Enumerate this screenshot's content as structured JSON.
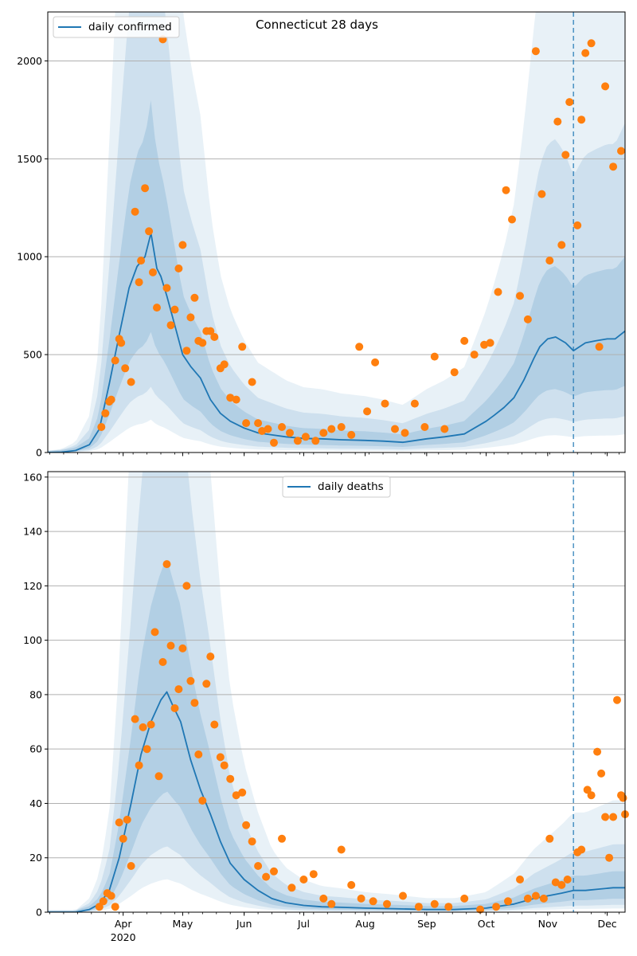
{
  "title": "Connecticut 28 days",
  "x_axis": {
    "type": "date",
    "range": [
      "2020-02-23",
      "2020-12-10"
    ],
    "ticks": [
      {
        "date": "2020-04-01",
        "label": "Apr",
        "sublabel": "2020"
      },
      {
        "date": "2020-05-01",
        "label": "May",
        "sublabel": ""
      },
      {
        "date": "2020-06-01",
        "label": "Jun",
        "sublabel": ""
      },
      {
        "date": "2020-07-01",
        "label": "Jul",
        "sublabel": ""
      },
      {
        "date": "2020-08-01",
        "label": "Aug",
        "sublabel": ""
      },
      {
        "date": "2020-09-01",
        "label": "Sep",
        "sublabel": ""
      },
      {
        "date": "2020-10-01",
        "label": "Oct",
        "sublabel": ""
      },
      {
        "date": "2020-11-01",
        "label": "Nov",
        "sublabel": ""
      },
      {
        "date": "2020-12-01",
        "label": "Dec",
        "sublabel": ""
      }
    ],
    "minor_ticks": "weekly",
    "forecast_start": "2020-11-14"
  },
  "colors": {
    "line": "#1f77b4",
    "points": "#ff7f0e",
    "band": "#1f77b4",
    "grid": "#b0b0b0",
    "vline": "#1f77b4"
  },
  "chart_data": [
    {
      "type": "line",
      "panel": "top",
      "series": [
        {
          "name": "daily confirmed",
          "kind": "line",
          "x": [
            "2020-02-23",
            "2020-03-01",
            "2020-03-08",
            "2020-03-15",
            "2020-03-20",
            "2020-03-25",
            "2020-03-30",
            "2020-04-04",
            "2020-04-08",
            "2020-04-12",
            "2020-04-15",
            "2020-04-18",
            "2020-04-20",
            "2020-04-23",
            "2020-04-27",
            "2020-05-01",
            "2020-05-05",
            "2020-05-10",
            "2020-05-15",
            "2020-05-20",
            "2020-05-25",
            "2020-06-01",
            "2020-06-08",
            "2020-06-15",
            "2020-06-22",
            "2020-07-01",
            "2020-07-10",
            "2020-07-20",
            "2020-08-01",
            "2020-08-10",
            "2020-08-20",
            "2020-09-01",
            "2020-09-10",
            "2020-09-20",
            "2020-10-01",
            "2020-10-05",
            "2020-10-10",
            "2020-10-15",
            "2020-10-20",
            "2020-10-25",
            "2020-10-28",
            "2020-11-01",
            "2020-11-05",
            "2020-11-10",
            "2020-11-14",
            "2020-11-20",
            "2020-11-25",
            "2020-12-01",
            "2020-12-05",
            "2020-12-10"
          ],
          "values": [
            0,
            2,
            10,
            40,
            120,
            350,
            600,
            840,
            950,
            1000,
            1120,
            940,
            900,
            800,
            650,
            500,
            440,
            380,
            270,
            200,
            160,
            125,
            100,
            90,
            80,
            72,
            70,
            65,
            62,
            58,
            52,
            70,
            80,
            95,
            160,
            190,
            230,
            280,
            370,
            480,
            540,
            580,
            590,
            560,
            520,
            560,
            570,
            580,
            580,
            620
          ]
        },
        {
          "name": "",
          "kind": "scatter",
          "x": [
            "2020-03-21",
            "2020-03-23",
            "2020-03-25",
            "2020-03-26",
            "2020-03-28",
            "2020-03-30",
            "2020-03-31",
            "2020-04-02",
            "2020-04-05",
            "2020-04-07",
            "2020-04-09",
            "2020-04-10",
            "2020-04-12",
            "2020-04-14",
            "2020-04-16",
            "2020-04-18",
            "2020-04-21",
            "2020-04-23",
            "2020-04-25",
            "2020-04-27",
            "2020-04-29",
            "2020-05-01",
            "2020-05-03",
            "2020-05-05",
            "2020-05-07",
            "2020-05-09",
            "2020-05-11",
            "2020-05-13",
            "2020-05-15",
            "2020-05-17",
            "2020-05-20",
            "2020-05-22",
            "2020-05-25",
            "2020-05-28",
            "2020-05-31",
            "2020-06-02",
            "2020-06-05",
            "2020-06-08",
            "2020-06-10",
            "2020-06-13",
            "2020-06-16",
            "2020-06-20",
            "2020-06-24",
            "2020-06-28",
            "2020-07-02",
            "2020-07-07",
            "2020-07-11",
            "2020-07-15",
            "2020-07-20",
            "2020-07-25",
            "2020-07-29",
            "2020-08-02",
            "2020-08-06",
            "2020-08-11",
            "2020-08-16",
            "2020-08-21",
            "2020-08-26",
            "2020-08-31",
            "2020-09-05",
            "2020-09-10",
            "2020-09-15",
            "2020-09-20",
            "2020-09-25",
            "2020-09-30",
            "2020-10-03",
            "2020-10-07",
            "2020-10-11",
            "2020-10-14",
            "2020-10-18",
            "2020-10-22",
            "2020-10-26",
            "2020-10-29",
            "2020-11-02",
            "2020-11-06",
            "2020-11-08",
            "2020-11-10",
            "2020-11-12",
            "2020-11-16",
            "2020-11-18",
            "2020-11-20",
            "2020-11-23",
            "2020-11-27",
            "2020-11-30",
            "2020-12-04",
            "2020-12-08"
          ],
          "values": [
            130,
            200,
            260,
            270,
            470,
            580,
            560,
            430,
            360,
            1230,
            870,
            980,
            1350,
            1130,
            920,
            740,
            2110,
            840,
            650,
            730,
            940,
            1060,
            520,
            690,
            790,
            570,
            560,
            620,
            620,
            590,
            430,
            450,
            280,
            270,
            540,
            150,
            360,
            150,
            110,
            120,
            50,
            130,
            100,
            60,
            80,
            60,
            100,
            120,
            130,
            90,
            540,
            210,
            460,
            250,
            120,
            100,
            250,
            130,
            490,
            120,
            410,
            570,
            500,
            550,
            560,
            820,
            1340,
            1190,
            800,
            680,
            2050,
            1320,
            980,
            1690,
            1060,
            1520,
            1790,
            1160,
            1700,
            2040,
            2090,
            540,
            1870,
            1460,
            1540
          ]
        }
      ],
      "ylim": [
        0,
        2250
      ],
      "yticks": [
        0,
        500,
        1000,
        1500,
        2000
      ],
      "grid": true,
      "legend": "top-left"
    },
    {
      "type": "line",
      "panel": "bottom",
      "series": [
        {
          "name": "daily deaths",
          "kind": "line",
          "x": [
            "2020-02-23",
            "2020-03-08",
            "2020-03-15",
            "2020-03-20",
            "2020-03-25",
            "2020-03-30",
            "2020-04-05",
            "2020-04-10",
            "2020-04-15",
            "2020-04-20",
            "2020-04-23",
            "2020-04-26",
            "2020-04-30",
            "2020-05-05",
            "2020-05-10",
            "2020-05-15",
            "2020-05-20",
            "2020-05-25",
            "2020-06-01",
            "2020-06-08",
            "2020-06-15",
            "2020-06-22",
            "2020-07-01",
            "2020-07-10",
            "2020-07-20",
            "2020-08-01",
            "2020-08-15",
            "2020-09-01",
            "2020-09-15",
            "2020-10-01",
            "2020-10-15",
            "2020-10-25",
            "2020-11-01",
            "2020-11-08",
            "2020-11-14",
            "2020-11-20",
            "2020-11-27",
            "2020-12-04",
            "2020-12-10"
          ],
          "values": [
            0,
            0,
            1,
            3,
            8,
            20,
            40,
            58,
            70,
            78,
            81,
            76,
            70,
            56,
            45,
            36,
            26,
            18,
            12,
            8,
            5,
            3.5,
            2.5,
            2,
            1.8,
            1.5,
            1.3,
            1,
            1,
            1.5,
            3,
            5,
            6,
            7,
            8,
            8,
            8.5,
            9,
            9
          ]
        },
        {
          "name": "",
          "kind": "scatter",
          "x": [
            "2020-03-20",
            "2020-03-22",
            "2020-03-24",
            "2020-03-26",
            "2020-03-28",
            "2020-03-30",
            "2020-04-01",
            "2020-04-03",
            "2020-04-05",
            "2020-04-07",
            "2020-04-09",
            "2020-04-11",
            "2020-04-13",
            "2020-04-15",
            "2020-04-17",
            "2020-04-19",
            "2020-04-21",
            "2020-04-23",
            "2020-04-25",
            "2020-04-27",
            "2020-04-29",
            "2020-05-01",
            "2020-05-03",
            "2020-05-05",
            "2020-05-07",
            "2020-05-09",
            "2020-05-11",
            "2020-05-13",
            "2020-05-15",
            "2020-05-17",
            "2020-05-20",
            "2020-05-22",
            "2020-05-25",
            "2020-05-28",
            "2020-05-31",
            "2020-06-02",
            "2020-06-05",
            "2020-06-08",
            "2020-06-12",
            "2020-06-16",
            "2020-06-20",
            "2020-06-25",
            "2020-07-01",
            "2020-07-06",
            "2020-07-11",
            "2020-07-15",
            "2020-07-20",
            "2020-07-25",
            "2020-07-30",
            "2020-08-05",
            "2020-08-12",
            "2020-08-20",
            "2020-08-28",
            "2020-09-05",
            "2020-09-12",
            "2020-09-20",
            "2020-09-28",
            "2020-10-06",
            "2020-10-12",
            "2020-10-18",
            "2020-10-22",
            "2020-10-26",
            "2020-10-30",
            "2020-11-02",
            "2020-11-05",
            "2020-11-08",
            "2020-11-11",
            "2020-11-16",
            "2020-11-18",
            "2020-11-21",
            "2020-11-23",
            "2020-11-26",
            "2020-11-28",
            "2020-11-30",
            "2020-12-02",
            "2020-12-04",
            "2020-12-06",
            "2020-12-08",
            "2020-12-09",
            "2020-12-10"
          ],
          "values": [
            2,
            4,
            7,
            6,
            2,
            33,
            27,
            34,
            17,
            71,
            54,
            68,
            60,
            69,
            103,
            50,
            92,
            128,
            98,
            75,
            82,
            97,
            120,
            85,
            77,
            58,
            41,
            84,
            94,
            69,
            57,
            54,
            49,
            43,
            44,
            32,
            26,
            17,
            13,
            15,
            27,
            9,
            12,
            14,
            5,
            3,
            23,
            10,
            5,
            4,
            3,
            6,
            2,
            3,
            2,
            5,
            1,
            2,
            4,
            12,
            5,
            6,
            5,
            27,
            11,
            10,
            12,
            22,
            23,
            45,
            43,
            59,
            51,
            35,
            20,
            35,
            78,
            43,
            42,
            36
          ]
        }
      ],
      "ylim": [
        0,
        162
      ],
      "yticks": [
        0,
        20,
        40,
        60,
        80,
        100,
        120,
        140,
        160
      ],
      "grid": true,
      "legend": "top-center"
    }
  ]
}
